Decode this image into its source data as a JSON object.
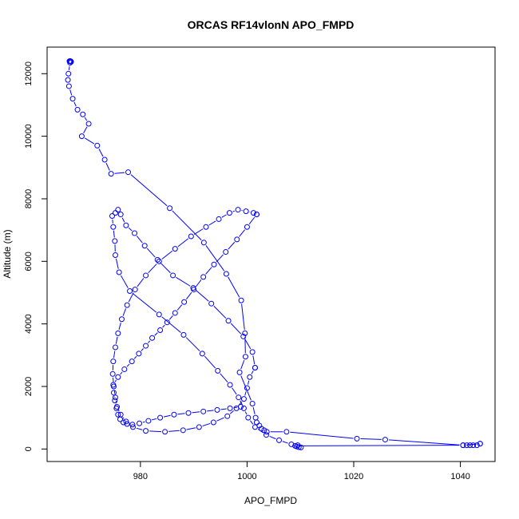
{
  "chart_data": {
    "type": "line",
    "title": "ORCAS RF14vlonN APO_FMPD",
    "xlabel": "APO_FMPD",
    "ylabel": "Altitude (m)",
    "xlim": [
      962.5,
      1046.5
    ],
    "ylim": [
      -400,
      12850
    ],
    "xticks": [
      980,
      1000,
      1020,
      1040
    ],
    "yticks": [
      0,
      2000,
      4000,
      6000,
      8000,
      10000,
      12000
    ],
    "grid": false,
    "legend": "none",
    "series_color": "#0000ff",
    "series": [
      {
        "x": [
          966.7,
          966.8,
          966.9,
          967.0,
          966.8,
          966.5,
          966.4,
          966.6,
          967.3,
          968.2,
          969.2,
          970.3,
          969.0,
          971.9,
          973.3,
          974.5,
          977.7,
          985.5,
          991.9,
          996.1,
          998.9,
          999.6,
          999.7,
          998.6,
          1001.0,
          1001.6,
          1001.8,
          1002.3,
          1002.7,
          1003.2,
          1003.7,
          1007.4,
          1020.6,
          1025.9,
          1040.5,
          1041.2,
          1041.8,
          1042.4,
          1043.1,
          1043.7
        ],
        "y": [
          12400,
          12400,
          12400,
          12380,
          12350,
          12000,
          11800,
          11600,
          11200,
          10850,
          10700,
          10400,
          10000,
          9700,
          9250,
          8800,
          8850,
          7700,
          6600,
          5600,
          4750,
          3700,
          2950,
          2450,
          1450,
          1000,
          850,
          750,
          650,
          600,
          550,
          550,
          330,
          300,
          120,
          120,
          120,
          120,
          120,
          170
        ]
      },
      {
        "x": [
          1043.7,
          1040.5,
          1009.0,
          1009.3,
          1009.7,
          1010.1,
          1009.5,
          1008.3,
          1006.0,
          1003.6,
          1001.5,
          1000.2,
          999.4,
          998.4,
          996.8,
          994.5,
          991.6,
          988.1,
          983.5,
          978.0,
          976.0,
          975.3,
          975.2,
          974.9,
          974.7,
          975.3,
          975.8,
          976.3,
          977.3,
          978.9,
          980.8,
          983.2,
          986.1,
          989.9,
          993.3,
          996.5,
          999.3,
          1001.0,
          1001.5
        ],
        "y": [
          170,
          120,
          100,
          80,
          60,
          50,
          120,
          150,
          280,
          450,
          700,
          1000,
          1300,
          1650,
          2050,
          2500,
          3050,
          3650,
          4300,
          5050,
          5650,
          6200,
          6650,
          7100,
          7450,
          7550,
          7650,
          7500,
          7150,
          6900,
          6500,
          6050,
          5550,
          5150,
          4650,
          4100,
          3600,
          3100,
          2600
        ]
      },
      {
        "x": [
          1001.5,
          1000.5,
          1000.0,
          999.4,
          998.0,
          996.3,
          993.7,
          991.0,
          988.0,
          984.6,
          981.0,
          978.6,
          977.3,
          976.3,
          975.6,
          975.3,
          975.0,
          974.8,
          974.9,
          975.3,
          975.8,
          976.5,
          977.5,
          979.0,
          981.0,
          983.5,
          986.5,
          989.5,
          992.3,
          994.7,
          996.7,
          998.3,
          999.8,
          1001.2,
          1001.8
        ],
        "y": [
          2600,
          2300,
          1950,
          1600,
          1300,
          1050,
          850,
          700,
          600,
          550,
          580,
          700,
          880,
          1100,
          1350,
          1650,
          2000,
          2400,
          2800,
          3250,
          3700,
          4150,
          4600,
          5100,
          5550,
          6000,
          6400,
          6800,
          7100,
          7350,
          7550,
          7650,
          7600,
          7550,
          7500
        ]
      },
      {
        "x": [
          1001.8,
          1000.0,
          998.1,
          996.0,
          993.8,
          991.8,
          990.0,
          988.2,
          986.5,
          985.0,
          983.7,
          982.2,
          981.0,
          979.7,
          978.4,
          977.0,
          975.8,
          974.9,
          975.0,
          975.2,
          975.5,
          975.8,
          976.2,
          976.8,
          977.5,
          978.5,
          979.8,
          981.5,
          983.7,
          986.3,
          989.0,
          991.8,
          994.4,
          996.8,
          998.8
        ],
        "y": [
          7500,
          7100,
          6700,
          6300,
          5900,
          5500,
          5100,
          4700,
          4350,
          4050,
          3800,
          3550,
          3300,
          3050,
          2800,
          2550,
          2300,
          2050,
          1800,
          1550,
          1300,
          1100,
          950,
          850,
          800,
          780,
          820,
          900,
          1000,
          1100,
          1150,
          1200,
          1250,
          1300,
          1350
        ]
      }
    ]
  }
}
